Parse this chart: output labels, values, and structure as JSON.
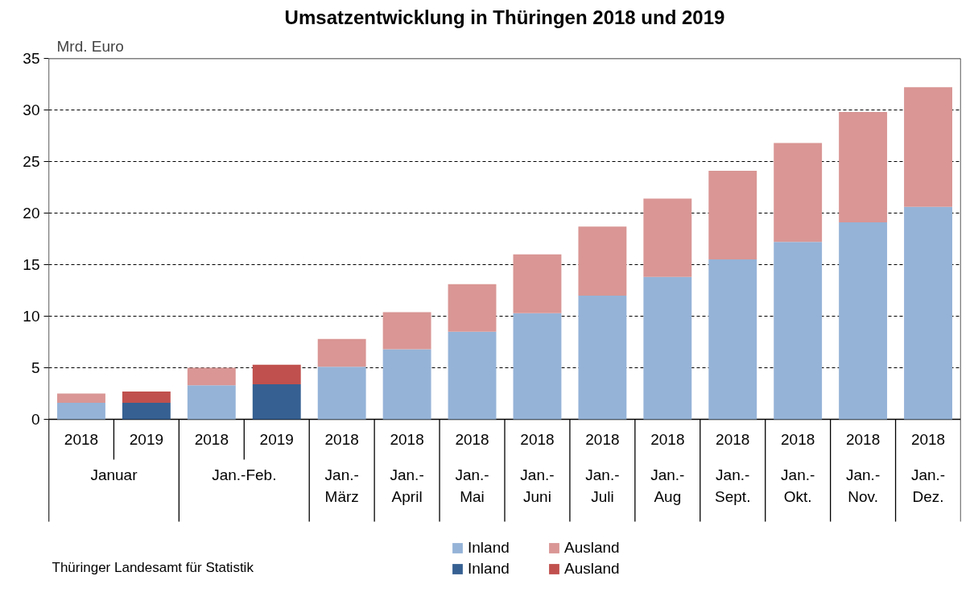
{
  "chart_data": {
    "type": "bar",
    "stacked": true,
    "title": "Umsatzentwicklung in Thüringen 2018 und 2019",
    "ylabel": "Mrd. Euro",
    "categories": [
      "2018",
      "2019",
      "2018",
      "2019",
      "2018",
      "2018",
      "2018",
      "2018",
      "2018",
      "2018",
      "2018",
      "2018",
      "2018",
      "2018"
    ],
    "series": [
      {
        "name": "Inland",
        "color": "#95b3d7",
        "values": [
          1.6,
          null,
          3.3,
          null,
          5.1,
          6.8,
          8.5,
          10.3,
          12.0,
          13.8,
          15.5,
          17.2,
          19.1,
          20.6
        ]
      },
      {
        "name": "Ausland",
        "color": "#d99694",
        "values": [
          0.9,
          null,
          1.7,
          null,
          2.7,
          3.6,
          4.6,
          5.7,
          6.7,
          7.6,
          8.6,
          9.6,
          10.7,
          11.6
        ]
      },
      {
        "name": "Inland",
        "color": "#366092",
        "values": [
          null,
          1.6,
          null,
          3.4,
          null,
          null,
          null,
          null,
          null,
          null,
          null,
          null,
          null,
          null
        ]
      },
      {
        "name": "Ausland",
        "color": "#c0504d",
        "values": [
          null,
          1.1,
          null,
          1.9,
          null,
          null,
          null,
          null,
          null,
          null,
          null,
          null,
          null,
          null
        ]
      }
    ],
    "ylim": [
      0,
      35
    ],
    "yticks": [
      0,
      5,
      10,
      15,
      20,
      25,
      30,
      35
    ],
    "grid": "y",
    "legend": "bottom",
    "annotations": [
      "Januar",
      "Jan.-Feb.",
      "Jan.-März",
      "Jan.-April",
      "Jan.-Mai",
      "Jan.-Juni",
      "Jan.-Juli",
      "Jan.-Aug",
      "Jan.-Sept.",
      "Jan.-Okt.",
      "Jan.-Nov.",
      "Jan.-Dez.",
      "Thüringer Landesamt für Statistik"
    ]
  }
}
